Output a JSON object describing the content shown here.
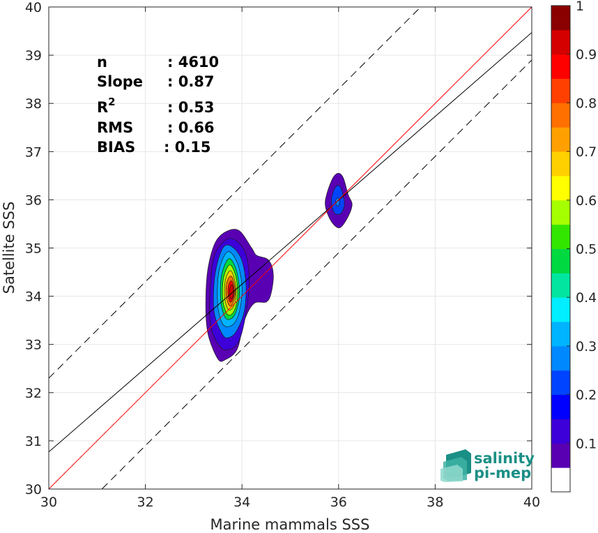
{
  "chart_data": {
    "type": "scatter",
    "subtype": "density-contour",
    "xlabel": "Marine mammals SSS",
    "ylabel": "Satellite SSS",
    "xlim": [
      30,
      40
    ],
    "ylim": [
      30,
      40
    ],
    "xticks": [
      30,
      32,
      34,
      36,
      38,
      40
    ],
    "yticks": [
      30,
      31,
      32,
      33,
      34,
      35,
      36,
      37,
      38,
      39,
      40
    ],
    "grid": true,
    "stats": [
      {
        "label": "n",
        "value": ": 4610"
      },
      {
        "label": "Slope",
        "value": ": 0.87"
      },
      {
        "label": "R",
        "sup": "2",
        "value": ": 0.53"
      },
      {
        "label": "RMS",
        "value": ": 0.66"
      },
      {
        "label": "BIAS",
        "value": ": 0.15"
      }
    ],
    "lines": {
      "identity": {
        "slope": 1,
        "intercept": 0,
        "color": "#ff0000"
      },
      "fit": {
        "slope": 0.87,
        "intercept": 4.67,
        "color": "#000000"
      },
      "upper_bound": {
        "slope": 1,
        "intercept": 2.3,
        "color": "#000000",
        "dash": true
      },
      "lower_bound": {
        "slope": 1,
        "intercept": -1.1,
        "color": "#000000",
        "dash": true
      }
    },
    "density_clusters": [
      {
        "name": "main",
        "levels": [
          {
            "level": 0.05,
            "points": [
              [
                33.5,
                32.7
              ],
              [
                33.3,
                33.2
              ],
              [
                33.25,
                33.8
              ],
              [
                33.3,
                34.6
              ],
              [
                33.5,
                35.2
              ],
              [
                33.9,
                35.38
              ],
              [
                34.2,
                35.0
              ],
              [
                34.3,
                34.85
              ],
              [
                34.55,
                34.75
              ],
              [
                34.65,
                34.45
              ],
              [
                34.6,
                34.05
              ],
              [
                34.5,
                33.88
              ],
              [
                34.25,
                33.85
              ],
              [
                34.05,
                33.5
              ],
              [
                33.9,
                32.9
              ],
              [
                33.65,
                32.68
              ]
            ]
          },
          {
            "level": 0.15,
            "points": [
              [
                33.55,
                32.95
              ],
              [
                33.35,
                33.4
              ],
              [
                33.35,
                34.3
              ],
              [
                33.45,
                34.9
              ],
              [
                33.75,
                35.2
              ],
              [
                34.05,
                34.95
              ],
              [
                34.15,
                34.4
              ],
              [
                34.1,
                33.75
              ],
              [
                33.95,
                33.1
              ],
              [
                33.75,
                32.9
              ]
            ]
          },
          {
            "level": 0.25,
            "points": [
              [
                33.6,
                33.2
              ],
              [
                33.42,
                33.7
              ],
              [
                33.45,
                34.5
              ],
              [
                33.65,
                35.05
              ],
              [
                33.95,
                34.85
              ],
              [
                34.08,
                34.3
              ],
              [
                34.05,
                33.7
              ],
              [
                33.9,
                33.3
              ],
              [
                33.75,
                33.15
              ]
            ]
          },
          {
            "level": 0.35,
            "points": [
              [
                33.62,
                33.4
              ],
              [
                33.5,
                33.8
              ],
              [
                33.52,
                34.5
              ],
              [
                33.7,
                34.92
              ],
              [
                33.9,
                34.7
              ],
              [
                34.0,
                34.2
              ],
              [
                33.95,
                33.7
              ],
              [
                33.82,
                33.42
              ]
            ]
          },
          {
            "level": 0.45,
            "points": [
              [
                33.66,
                33.55
              ],
              [
                33.56,
                33.9
              ],
              [
                33.58,
                34.45
              ],
              [
                33.73,
                34.78
              ],
              [
                33.88,
                34.55
              ],
              [
                33.95,
                34.1
              ],
              [
                33.9,
                33.75
              ],
              [
                33.8,
                33.55
              ]
            ]
          },
          {
            "level": 0.55,
            "points": [
              [
                33.68,
                33.65
              ],
              [
                33.6,
                33.95
              ],
              [
                33.62,
                34.4
              ],
              [
                33.75,
                34.65
              ],
              [
                33.87,
                34.42
              ],
              [
                33.91,
                34.05
              ],
              [
                33.87,
                33.78
              ],
              [
                33.78,
                33.62
              ]
            ]
          },
          {
            "level": 0.65,
            "points": [
              [
                33.7,
                33.75
              ],
              [
                33.64,
                34.0
              ],
              [
                33.66,
                34.35
              ],
              [
                33.76,
                34.53
              ],
              [
                33.85,
                34.33
              ],
              [
                33.88,
                34.05
              ],
              [
                33.84,
                33.83
              ],
              [
                33.77,
                33.72
              ]
            ]
          },
          {
            "level": 0.75,
            "points": [
              [
                33.72,
                33.83
              ],
              [
                33.67,
                34.05
              ],
              [
                33.69,
                34.3
              ],
              [
                33.77,
                34.42
              ],
              [
                33.84,
                34.26
              ],
              [
                33.86,
                34.05
              ],
              [
                33.82,
                33.88
              ],
              [
                33.77,
                33.8
              ]
            ]
          },
          {
            "level": 0.85,
            "points": [
              [
                33.74,
                33.9
              ],
              [
                33.71,
                34.05
              ],
              [
                33.72,
                34.22
              ],
              [
                33.78,
                34.32
              ],
              [
                33.83,
                34.2
              ],
              [
                33.84,
                34.05
              ],
              [
                33.81,
                33.93
              ],
              [
                33.77,
                33.88
              ]
            ]
          },
          {
            "level": 0.95,
            "points": [
              [
                33.76,
                33.95
              ],
              [
                33.74,
                34.07
              ],
              [
                33.76,
                34.2
              ],
              [
                33.8,
                34.23
              ],
              [
                33.82,
                34.12
              ],
              [
                33.82,
                34.02
              ],
              [
                33.79,
                33.95
              ]
            ]
          }
        ]
      },
      {
        "name": "secondary",
        "levels": [
          {
            "level": 0.05,
            "points": [
              [
                35.85,
                35.55
              ],
              [
                35.73,
                35.85
              ],
              [
                35.75,
                36.1
              ],
              [
                35.88,
                36.45
              ],
              [
                36.0,
                36.55
              ],
              [
                36.1,
                36.45
              ],
              [
                36.2,
                36.1
              ],
              [
                36.28,
                35.9
              ],
              [
                36.18,
                35.62
              ],
              [
                36.02,
                35.42
              ]
            ]
          },
          {
            "level": 0.2,
            "points": [
              [
                35.92,
                35.72
              ],
              [
                35.85,
                35.95
              ],
              [
                35.9,
                36.2
              ],
              [
                36.0,
                36.3
              ],
              [
                36.08,
                36.15
              ],
              [
                36.12,
                35.9
              ],
              [
                36.05,
                35.72
              ]
            ]
          },
          {
            "level": 0.3,
            "points": [
              [
                35.96,
                35.88
              ],
              [
                35.94,
                35.98
              ],
              [
                35.98,
                36.04
              ],
              [
                36.02,
                35.98
              ],
              [
                36.0,
                35.88
              ]
            ]
          }
        ]
      }
    ],
    "colorbar": {
      "ticks": [
        "0.1",
        "0.2",
        "0.3",
        "0.4",
        "0.5",
        "0.6",
        "0.7",
        "0.8",
        "0.9",
        "1"
      ],
      "tick_values": [
        0.1,
        0.2,
        0.3,
        0.4,
        0.5,
        0.6,
        0.7,
        0.8,
        0.9,
        1.0
      ],
      "colors": [
        "#ffffff",
        "#5900b3",
        "#3d00d9",
        "#0000ff",
        "#0044ff",
        "#0088ff",
        "#00b4ff",
        "#00eeff",
        "#00e6a0",
        "#00d940",
        "#33e600",
        "#a6ff00",
        "#ffff00",
        "#ffd000",
        "#ffa000",
        "#ff7000",
        "#ff4000",
        "#ff0000",
        "#d40000",
        "#8b0000"
      ]
    }
  },
  "logo": {
    "line1": "salinity",
    "line2": "pi-mep",
    "color": "#1a8f85"
  }
}
